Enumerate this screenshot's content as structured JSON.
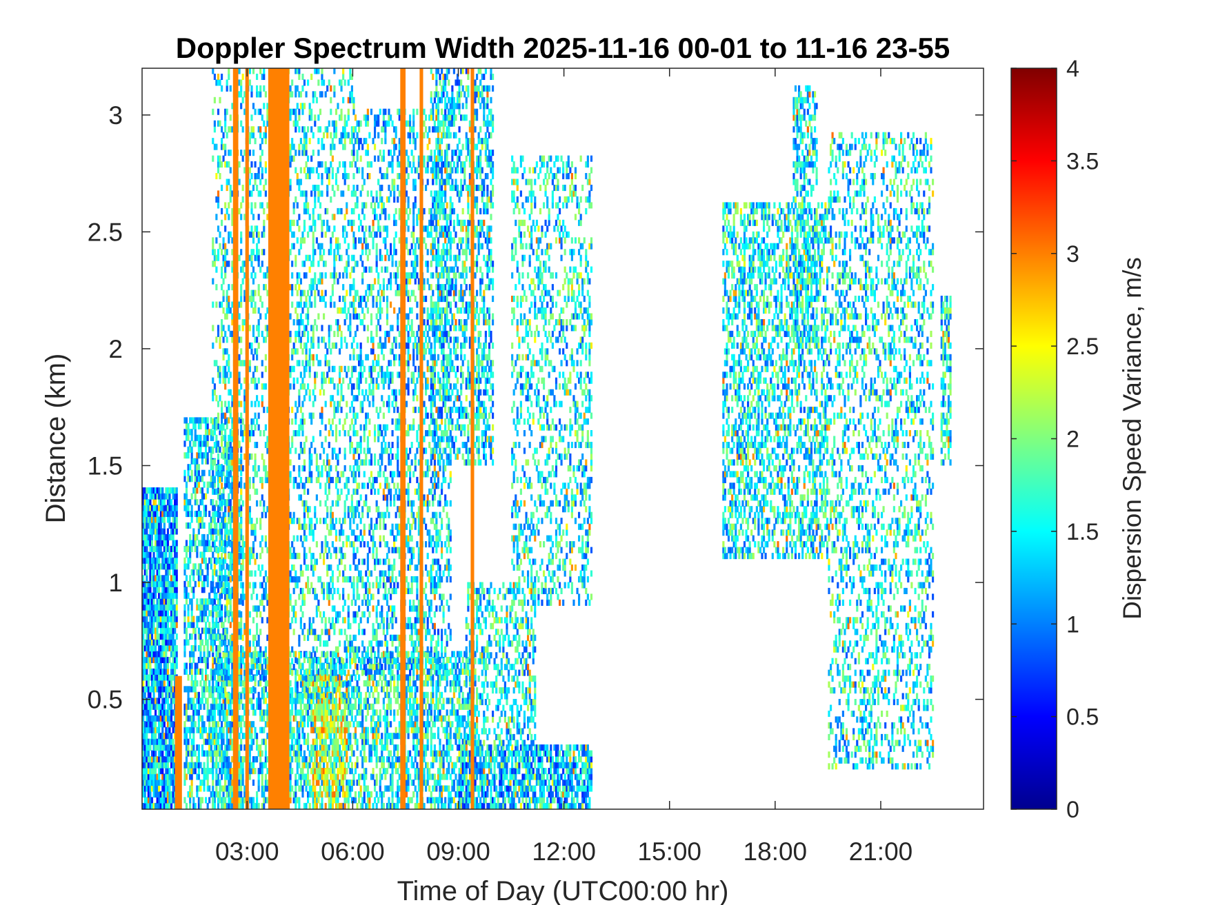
{
  "chart_data": {
    "type": "heatmap",
    "title": "Doppler Spectrum Width 2025-11-16 00-01 to 11-16 23-55",
    "xlabel": "Time of Day (UTC00:00 hr)",
    "ylabel": "Distance (km)",
    "colorbar_label": "Dispersion Speed Variance, m/s",
    "colormap": "jet",
    "x_unit": "hours",
    "xlim": [
      0.0167,
      23.92
    ],
    "ylim": [
      0.03,
      3.2
    ],
    "clim": [
      0,
      4
    ],
    "x_ticks": [
      {
        "value": 3,
        "label": "03:00"
      },
      {
        "value": 6,
        "label": "06:00"
      },
      {
        "value": 9,
        "label": "09:00"
      },
      {
        "value": 12,
        "label": "12:00"
      },
      {
        "value": 15,
        "label": "15:00"
      },
      {
        "value": 18,
        "label": "18:00"
      },
      {
        "value": 21,
        "label": "21:00"
      }
    ],
    "y_ticks": [
      {
        "value": 0.5,
        "label": "0.5"
      },
      {
        "value": 1,
        "label": "1"
      },
      {
        "value": 1.5,
        "label": "1.5"
      },
      {
        "value": 2,
        "label": "2"
      },
      {
        "value": 2.5,
        "label": "2.5"
      },
      {
        "value": 3,
        "label": "3"
      }
    ],
    "c_ticks": [
      {
        "value": 0,
        "label": "0"
      },
      {
        "value": 0.5,
        "label": "0.5"
      },
      {
        "value": 1,
        "label": "1"
      },
      {
        "value": 1.5,
        "label": "1.5"
      },
      {
        "value": 2,
        "label": "2"
      },
      {
        "value": 2.5,
        "label": "2.5"
      },
      {
        "value": 3,
        "label": "3"
      },
      {
        "value": 3.5,
        "label": "3.5"
      },
      {
        "value": 4,
        "label": "4"
      }
    ],
    "grid": false,
    "regions": [
      {
        "x0": 0.02,
        "x1": 1.0,
        "y0": 0.03,
        "y1": 1.4,
        "value": 1.2,
        "density": 0.9
      },
      {
        "x0": 1.2,
        "x1": 2.8,
        "y0": 0.03,
        "y1": 1.7,
        "value": 1.4,
        "density": 0.55
      },
      {
        "x0": 2.0,
        "x1": 9.5,
        "y0": 0.03,
        "y1": 0.7,
        "value": 1.5,
        "density": 0.55
      },
      {
        "x0": 4.8,
        "x1": 5.8,
        "y0": 0.03,
        "y1": 0.6,
        "value": 2.4,
        "density": 0.5
      },
      {
        "x0": 2.0,
        "x1": 6.0,
        "y0": 0.5,
        "y1": 3.2,
        "value": 1.5,
        "density": 0.3
      },
      {
        "x0": 6.0,
        "x1": 8.8,
        "y0": 0.6,
        "y1": 3.0,
        "value": 1.4,
        "density": 0.35
      },
      {
        "x0": 8.2,
        "x1": 10.0,
        "y0": 1.5,
        "y1": 3.2,
        "value": 1.4,
        "density": 0.45
      },
      {
        "x0": 9.0,
        "x1": 12.8,
        "y0": 0.03,
        "y1": 0.3,
        "value": 1.3,
        "density": 0.7
      },
      {
        "x0": 9.2,
        "x1": 11.2,
        "y0": 0.3,
        "y1": 1.0,
        "value": 1.5,
        "density": 0.4
      },
      {
        "x0": 10.5,
        "x1": 12.8,
        "y0": 0.9,
        "y1": 2.8,
        "value": 1.5,
        "density": 0.3
      },
      {
        "x0": 16.5,
        "x1": 19.5,
        "y0": 1.1,
        "y1": 2.6,
        "value": 1.5,
        "density": 0.45
      },
      {
        "x0": 18.5,
        "x1": 19.2,
        "y0": 2.0,
        "y1": 3.1,
        "value": 1.5,
        "density": 0.5
      },
      {
        "x0": 19.5,
        "x1": 22.5,
        "y0": 0.2,
        "y1": 2.9,
        "value": 1.5,
        "density": 0.3
      },
      {
        "x0": 22.7,
        "x1": 23.0,
        "y0": 1.5,
        "y1": 2.2,
        "value": 1.5,
        "density": 0.6
      }
    ],
    "stripes": [
      {
        "x0": 0.95,
        "x1": 1.15,
        "y0": 0.03,
        "y1": 0.6,
        "value": 3.0
      },
      {
        "x0": 2.6,
        "x1": 2.75,
        "y0": 0.03,
        "y1": 3.2,
        "value": 3.0
      },
      {
        "x0": 2.95,
        "x1": 3.05,
        "y0": 0.03,
        "y1": 3.2,
        "value": 3.0
      },
      {
        "x0": 3.6,
        "x1": 4.2,
        "y0": 0.03,
        "y1": 3.2,
        "value": 3.0
      },
      {
        "x0": 7.35,
        "x1": 7.5,
        "y0": 0.03,
        "y1": 3.2,
        "value": 3.0
      },
      {
        "x0": 7.9,
        "x1": 8.0,
        "y0": 0.03,
        "y1": 3.2,
        "value": 3.0
      },
      {
        "x0": 9.35,
        "x1": 9.45,
        "y0": 0.03,
        "y1": 3.2,
        "value": 3.0
      }
    ]
  }
}
